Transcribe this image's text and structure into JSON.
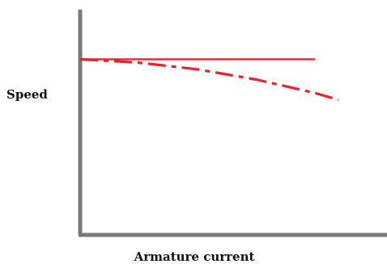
{
  "chart_data": {
    "type": "line",
    "title": "",
    "xlabel": "Armature current",
    "ylabel": "Speed",
    "xlim": [
      0,
      1
    ],
    "ylim": [
      0,
      1
    ],
    "grid": false,
    "legend": "none",
    "series": [
      {
        "style": "solid",
        "color": "#e8242a",
        "x": [
          0,
          1
        ],
        "y": [
          0.78,
          0.78
        ]
      },
      {
        "style": "dashdot",
        "color": "#e8242a",
        "x": [
          0,
          0.25,
          0.5,
          0.75,
          1.0,
          1.1
        ],
        "y": [
          0.78,
          0.765,
          0.735,
          0.69,
          0.63,
          0.6
        ]
      }
    ]
  }
}
